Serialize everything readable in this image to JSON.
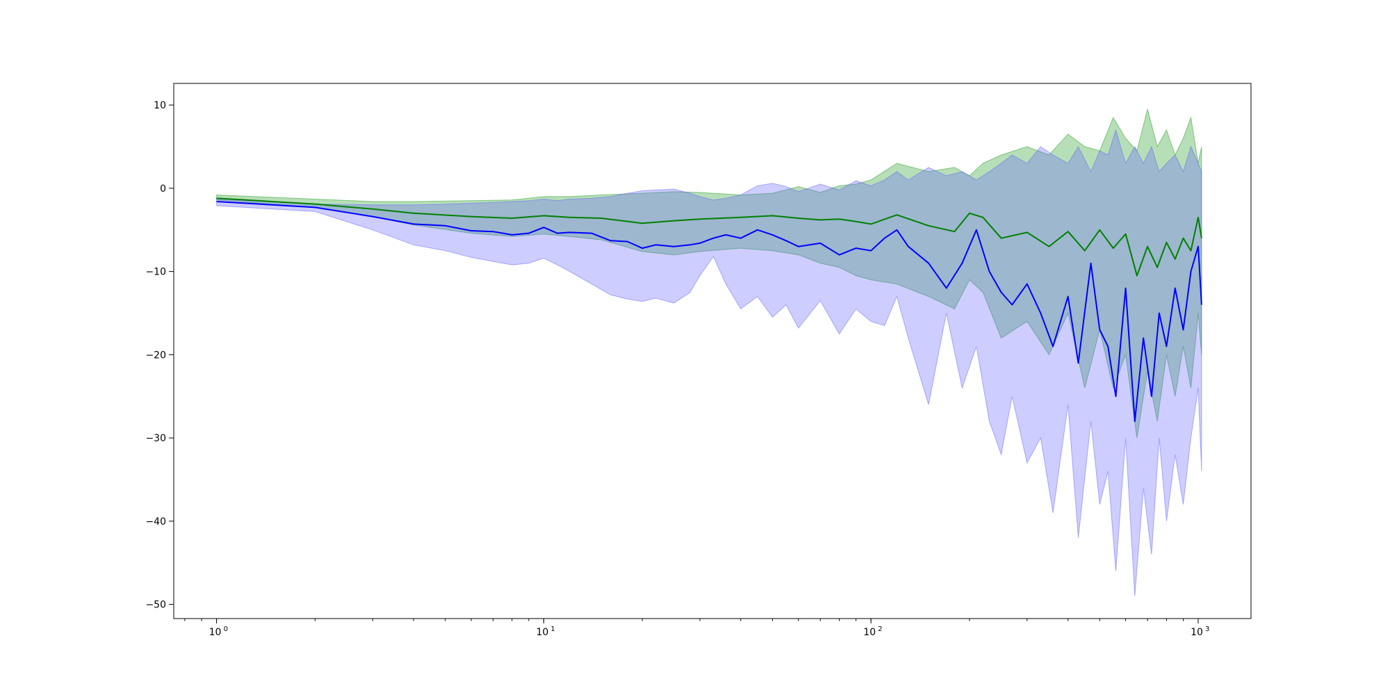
{
  "chart_data": {
    "type": "line",
    "xscale": "log",
    "xlim": [
      0.74,
      1450
    ],
    "ylim": [
      -51.7,
      12.6
    ],
    "grid": false,
    "legend": "none",
    "xticks": [
      {
        "value": 1,
        "base": "10",
        "exp": "0"
      },
      {
        "value": 10,
        "base": "10",
        "exp": "1"
      },
      {
        "value": 100,
        "base": "10",
        "exp": "2"
      },
      {
        "value": 1000,
        "base": "10",
        "exp": "3"
      }
    ],
    "yticks": [
      {
        "value": 10,
        "label": "10"
      },
      {
        "value": 0,
        "label": "0"
      },
      {
        "value": -10,
        "label": "−10"
      },
      {
        "value": -20,
        "label": "−20"
      },
      {
        "value": -30,
        "label": "−30"
      },
      {
        "value": -40,
        "label": "−40"
      },
      {
        "value": -50,
        "label": "−50"
      }
    ],
    "series": [
      {
        "color": "#008000",
        "band_color": "#1f9a1f",
        "x": [
          1,
          2,
          3,
          4,
          6,
          8,
          10,
          12,
          15,
          20,
          25,
          30,
          40,
          50,
          60,
          70,
          80,
          90,
          100,
          120,
          150,
          180,
          200,
          220,
          250,
          300,
          350,
          400,
          450,
          500,
          550,
          600,
          650,
          700,
          750,
          800,
          850,
          900,
          950,
          1000,
          1024
        ],
        "y": [
          -1.2,
          -1.9,
          -2.5,
          -3.0,
          -3.4,
          -3.6,
          -3.3,
          -3.5,
          -3.6,
          -4.2,
          -3.9,
          -3.7,
          -3.5,
          -3.3,
          -3.6,
          -3.8,
          -3.7,
          -4.0,
          -4.3,
          -3.2,
          -4.5,
          -5.2,
          -3.0,
          -3.5,
          -6.0,
          -5.3,
          -7.0,
          -5.2,
          -7.5,
          -5.0,
          -7.2,
          -5.5,
          -10.5,
          -7.0,
          -9.5,
          -6.5,
          -8.5,
          -6.0,
          -7.5,
          -3.5,
          -6.0
        ],
        "upper": [
          -0.8,
          -1.3,
          -1.6,
          -1.6,
          -1.5,
          -1.4,
          -1.0,
          -1.0,
          -0.8,
          -0.6,
          -0.4,
          -0.5,
          -0.8,
          -0.6,
          0.2,
          -0.5,
          0.3,
          0.5,
          1.0,
          3.0,
          2.0,
          2.5,
          1.5,
          3.0,
          4.0,
          5.0,
          4.0,
          6.5,
          5.0,
          4.5,
          8.5,
          6.0,
          4.5,
          9.5,
          5.0,
          7.0,
          4.0,
          6.0,
          8.5,
          3.0,
          5.0
        ],
        "lower": [
          -1.4,
          -2.3,
          -3.4,
          -4.4,
          -5.4,
          -5.8,
          -5.5,
          -5.8,
          -6.2,
          -7.6,
          -8.0,
          -7.6,
          -7.2,
          -7.5,
          -8.0,
          -9.0,
          -9.5,
          -10.5,
          -11.0,
          -11.5,
          -13.0,
          -14.5,
          -11.0,
          -12.5,
          -18.0,
          -16.0,
          -20.0,
          -15.0,
          -24.0,
          -17.0,
          -24.0,
          -20.0,
          -30.0,
          -22.0,
          -28.0,
          -20.0,
          -25.0,
          -19.0,
          -24.0,
          -15.0,
          -20.0
        ]
      },
      {
        "color": "#0000ff",
        "band_color": "#6464ff",
        "x": [
          1,
          2,
          3,
          4,
          5,
          6,
          7,
          8,
          9,
          10,
          11,
          12,
          14,
          16,
          18,
          20,
          22,
          25,
          28,
          30,
          33,
          36,
          40,
          45,
          50,
          55,
          60,
          70,
          80,
          90,
          100,
          110,
          120,
          130,
          150,
          170,
          190,
          210,
          230,
          250,
          270,
          300,
          330,
          360,
          400,
          430,
          470,
          500,
          530,
          560,
          600,
          640,
          680,
          720,
          760,
          800,
          850,
          900,
          950,
          1000,
          1024
        ],
        "y": [
          -1.6,
          -2.3,
          -3.4,
          -4.3,
          -4.5,
          -5.1,
          -5.2,
          -5.6,
          -5.4,
          -4.7,
          -5.4,
          -5.3,
          -5.4,
          -6.3,
          -6.4,
          -7.2,
          -6.8,
          -7.0,
          -6.8,
          -6.6,
          -6.0,
          -5.6,
          -6.0,
          -5.0,
          -5.6,
          -6.3,
          -7.0,
          -6.6,
          -8.0,
          -7.2,
          -7.5,
          -6.0,
          -5.0,
          -7.0,
          -9.0,
          -12.0,
          -9.0,
          -5.0,
          -10.0,
          -12.5,
          -14.0,
          -11.5,
          -15.0,
          -19.0,
          -13.0,
          -21.0,
          -9.0,
          -17.0,
          -19.0,
          -25.0,
          -12.0,
          -28.0,
          -18.0,
          -25.0,
          -15.0,
          -19.0,
          -12.0,
          -17.0,
          -10.0,
          -7.0,
          -14.0
        ],
        "upper": [
          -1.3,
          -1.9,
          -2.0,
          -2.0,
          -1.9,
          -1.8,
          -1.7,
          -1.6,
          -1.5,
          -1.3,
          -1.5,
          -1.3,
          -1.2,
          -1.0,
          -0.6,
          -0.3,
          -0.2,
          -0.1,
          -0.6,
          -1.0,
          -1.4,
          -1.2,
          -0.8,
          0.3,
          0.6,
          0.2,
          -0.4,
          0.5,
          -0.2,
          0.9,
          0.3,
          1.0,
          2.0,
          1.0,
          2.5,
          1.5,
          2.0,
          1.0,
          2.0,
          3.0,
          4.0,
          3.0,
          5.0,
          4.0,
          3.0,
          5.0,
          2.0,
          4.5,
          4.0,
          7.0,
          3.0,
          5.0,
          3.0,
          5.0,
          2.0,
          3.0,
          4.0,
          2.0,
          5.0,
          3.0,
          2.0
        ],
        "lower": [
          -2.1,
          -2.8,
          -5.0,
          -6.8,
          -7.5,
          -8.3,
          -8.8,
          -9.2,
          -9.0,
          -8.4,
          -9.2,
          -10.0,
          -11.5,
          -12.8,
          -13.3,
          -13.6,
          -13.2,
          -13.8,
          -12.5,
          -10.5,
          -8.2,
          -11.5,
          -14.5,
          -13.0,
          -15.5,
          -14.0,
          -16.8,
          -13.5,
          -17.5,
          -14.5,
          -16.0,
          -16.5,
          -13.0,
          -18.0,
          -26.0,
          -15.0,
          -24.0,
          -19.0,
          -28.0,
          -32.0,
          -25.0,
          -33.0,
          -30.0,
          -39.0,
          -26.0,
          -42.0,
          -28.0,
          -38.0,
          -34.0,
          -46.0,
          -30.0,
          -49.0,
          -36.0,
          -44.0,
          -30.0,
          -40.0,
          -32.0,
          -38.0,
          -30.0,
          -24.0,
          -34.0
        ]
      }
    ]
  }
}
